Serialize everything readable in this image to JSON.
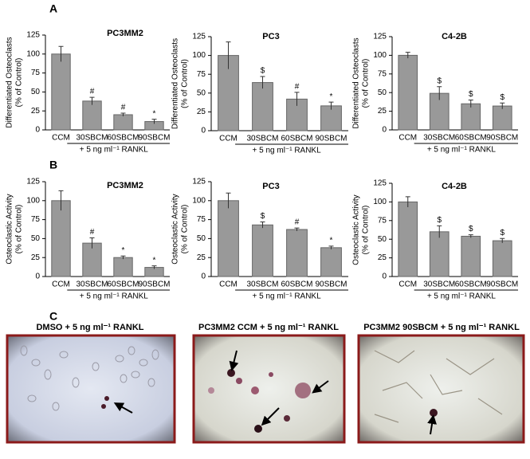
{
  "panel_labels": [
    "A",
    "B",
    "C"
  ],
  "chart_data": [
    {
      "type": "bar",
      "title": "PC3MM2",
      "ylabel": [
        "Differentiated Osteoclasts",
        "(% of Control)"
      ],
      "xlabel": "+ 5 ng ml⁻¹ RANKL",
      "categories": [
        "CCM",
        "30SBCM",
        "60SBCM",
        "90SBCM"
      ],
      "values": [
        100,
        38,
        20,
        11
      ],
      "errors": [
        10,
        5,
        2,
        3
      ],
      "annotations": [
        null,
        "#",
        "#",
        "*"
      ],
      "color": "#999999",
      "ylim": [
        0,
        125
      ],
      "yticks": [
        0,
        25,
        50,
        75,
        100,
        125
      ]
    },
    {
      "type": "bar",
      "title": "PC3",
      "ylabel": [
        "Differentiated Osteoclasts",
        "(% of Control)"
      ],
      "xlabel": "+ 5 ng ml⁻¹ RANKL",
      "categories": [
        "CCM",
        "30SBCM",
        "60SBCM",
        "90SBCM"
      ],
      "values": [
        100,
        64,
        42,
        33
      ],
      "errors": [
        18,
        8,
        9,
        5
      ],
      "annotations": [
        null,
        "$",
        "#",
        "*"
      ],
      "color": "#999999",
      "ylim": [
        0,
        125
      ],
      "yticks": [
        0,
        25,
        50,
        75,
        100,
        125
      ]
    },
    {
      "type": "bar",
      "title": "C4-2B",
      "ylabel": [
        "Differentiated Osteoclasts",
        "(% of Control)"
      ],
      "xlabel": "+ 5 ng ml⁻¹ RANKL",
      "categories": [
        "CCM",
        "30SBCM",
        "60SBCM",
        "90SBCM"
      ],
      "values": [
        100,
        49,
        35,
        32
      ],
      "errors": [
        4,
        9,
        5,
        4
      ],
      "annotations": [
        null,
        "$",
        "$",
        "$"
      ],
      "color": "#999999",
      "ylim": [
        0,
        125
      ],
      "yticks": [
        0,
        25,
        50,
        75,
        100,
        125
      ]
    },
    {
      "type": "bar",
      "title": "PC3MM2",
      "ylabel": [
        "Osteoclastic Activity",
        "(% of Control)"
      ],
      "xlabel": "+ 5 ng ml⁻¹ RANKL",
      "categories": [
        "CCM",
        "30SBCM",
        "60SBCM",
        "90SBCM"
      ],
      "values": [
        100,
        44,
        25,
        12
      ],
      "errors": [
        13,
        7,
        2,
        2
      ],
      "annotations": [
        null,
        "#",
        "*",
        "*"
      ],
      "color": "#999999",
      "ylim": [
        0,
        125
      ],
      "yticks": [
        0,
        25,
        50,
        75,
        100,
        125
      ]
    },
    {
      "type": "bar",
      "title": "PC3",
      "ylabel": [
        "Osteoclastic Activity",
        "(% of Control)"
      ],
      "xlabel": "+ 5 ng ml⁻¹ RANKL",
      "categories": [
        "CCM",
        "30SBCM",
        "60SBCM",
        "90SBCM"
      ],
      "values": [
        100,
        68,
        62,
        38
      ],
      "errors": [
        10,
        4,
        2,
        2
      ],
      "annotations": [
        null,
        "$",
        "#",
        "*"
      ],
      "color": "#999999",
      "ylim": [
        0,
        125
      ],
      "yticks": [
        0,
        25,
        50,
        75,
        100,
        125
      ]
    },
    {
      "type": "bar",
      "title": "C4-2B",
      "ylabel": [
        "Osteoclastic Activity",
        "(% of Control)"
      ],
      "xlabel": "+ 5 ng ml⁻¹ RANKL",
      "categories": [
        "CCM",
        "30SBCM",
        "60SBCM",
        "90SBCM"
      ],
      "values": [
        100,
        60,
        54,
        48
      ],
      "errors": [
        7,
        8,
        2,
        3
      ],
      "annotations": [
        null,
        "$",
        "$",
        "$"
      ],
      "color": "#999999",
      "ylim": [
        0,
        125
      ],
      "yticks": [
        0,
        25,
        50,
        75,
        100,
        125
      ]
    }
  ],
  "images": [
    {
      "title": "DMSO + 5 ng ml⁻¹ RANKL"
    },
    {
      "title": "PC3MM2 CCM + 5 ng ml⁻¹ RANKL"
    },
    {
      "title": "PC3MM2 90SBCM + 5 ng ml⁻¹ RANKL"
    }
  ]
}
